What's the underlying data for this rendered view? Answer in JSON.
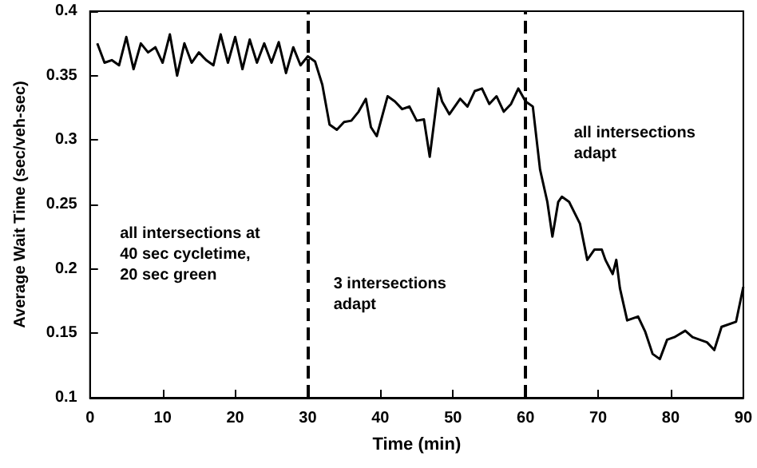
{
  "chart_data": {
    "type": "line",
    "xlabel": "Time (min)",
    "ylabel": "Average Wait Time (sec/veh-sec)",
    "x": [
      1,
      2,
      3,
      4,
      5,
      6,
      7,
      8,
      9,
      10,
      11,
      12,
      13,
      14,
      15,
      16,
      17,
      18,
      19,
      20,
      21,
      22,
      23,
      24,
      25,
      26,
      27,
      28,
      29,
      30,
      31,
      32,
      33,
      34,
      35,
      36,
      37,
      38,
      38.7,
      39.5,
      41,
      42,
      43,
      44,
      45,
      46,
      46.8,
      47.5,
      48,
      48.5,
      49.5,
      51,
      52,
      53,
      54,
      55,
      56,
      57,
      58,
      59,
      60,
      61,
      62,
      63,
      63.7,
      64.5,
      65,
      66,
      67.5,
      68.5,
      69.5,
      70.5,
      71,
      72,
      72.5,
      73,
      74,
      75.5,
      76.5,
      77.5,
      78.5,
      79.5,
      80.5,
      82,
      83,
      85,
      86,
      87,
      89,
      90
    ],
    "series": [
      {
        "color": "#000000",
        "values": [
          0.375,
          0.36,
          0.362,
          0.358,
          0.38,
          0.355,
          0.375,
          0.368,
          0.372,
          0.36,
          0.382,
          0.35,
          0.375,
          0.36,
          0.368,
          0.362,
          0.358,
          0.382,
          0.36,
          0.38,
          0.355,
          0.378,
          0.36,
          0.375,
          0.36,
          0.376,
          0.352,
          0.372,
          0.358,
          0.365,
          0.361,
          0.343,
          0.312,
          0.308,
          0.314,
          0.315,
          0.322,
          0.332,
          0.31,
          0.303,
          0.334,
          0.33,
          0.324,
          0.326,
          0.315,
          0.316,
          0.287,
          0.318,
          0.34,
          0.33,
          0.32,
          0.332,
          0.326,
          0.338,
          0.34,
          0.328,
          0.334,
          0.322,
          0.328,
          0.34,
          0.33,
          0.326,
          0.277,
          0.252,
          0.225,
          0.252,
          0.256,
          0.252,
          0.235,
          0.207,
          0.215,
          0.215,
          0.207,
          0.196,
          0.207,
          0.185,
          0.16,
          0.163,
          0.151,
          0.134,
          0.13,
          0.145,
          0.147,
          0.152,
          0.147,
          0.143,
          0.137,
          0.155,
          0.159,
          0.186
        ]
      }
    ],
    "xlim": [
      0,
      90
    ],
    "xticks": [
      0,
      10,
      20,
      30,
      40,
      50,
      60,
      70,
      80,
      90
    ],
    "ylim": [
      0.1,
      0.4
    ],
    "yticks": [
      0.1,
      0.15,
      0.2,
      0.25,
      0.3,
      0.35,
      0.4
    ],
    "ref_lines": [
      {
        "axis": "x",
        "value": 30,
        "color": "#000000",
        "line_style": "dashed"
      },
      {
        "axis": "x",
        "value": 60,
        "color": "#000000",
        "line_style": "dashed"
      }
    ],
    "annotations": [
      "all intersections at\n40 sec cycletime,\n20 sec green",
      "3 intersections\nadapt",
      "all intersections\nadapt"
    ],
    "grid": false,
    "marker": "none",
    "line_style": "solid"
  }
}
